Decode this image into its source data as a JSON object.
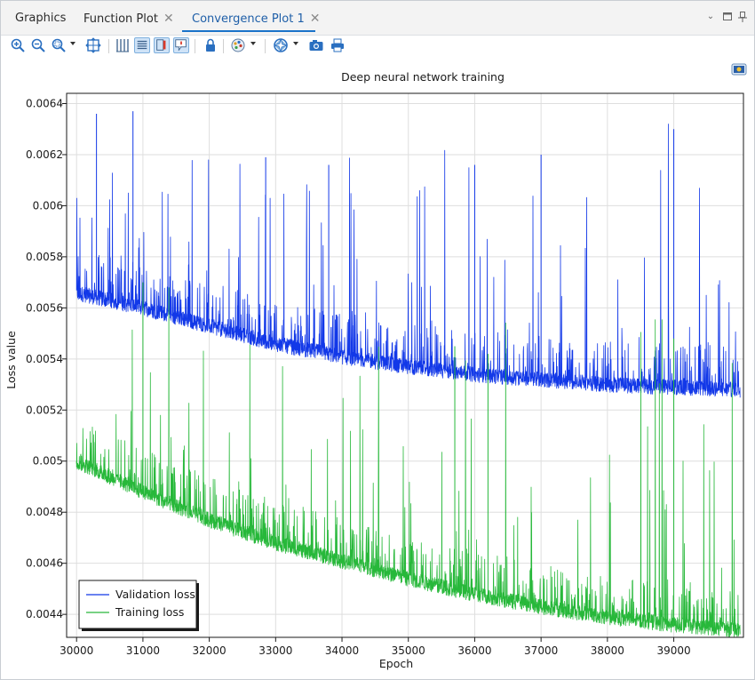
{
  "tabs": [
    {
      "label": "Graphics",
      "closable": false,
      "active": false
    },
    {
      "label": "Function Plot",
      "closable": true,
      "active": false
    },
    {
      "label": "Convergence Plot 1",
      "closable": true,
      "active": true
    }
  ],
  "toolbar": {
    "icons": [
      "zoom-in-icon",
      "zoom-out-icon",
      "zoom-box-icon",
      "zoom-extents-icon",
      "grid-icon",
      "legend-icon",
      "color-table-icon",
      "annotation-icon",
      "lock-icon",
      "scene-light-icon",
      "transparency-icon",
      "camera-icon",
      "print-icon"
    ]
  },
  "chart_data": {
    "type": "line",
    "title": "Deep neural network training",
    "xlabel": "Epoch",
    "ylabel": "Loss value",
    "xlim": [
      29850,
      40050
    ],
    "ylim": [
      0.00431,
      0.00644
    ],
    "xticks": [
      30000,
      31000,
      32000,
      33000,
      34000,
      35000,
      36000,
      37000,
      38000,
      39000
    ],
    "xtick_labels": [
      "30000",
      "31000",
      "32000",
      "33000",
      "34000",
      "35000",
      "36000",
      "37000",
      "38000",
      "39000"
    ],
    "yticks": [
      0.0044,
      0.0046,
      0.0048,
      0.005,
      0.0052,
      0.0054,
      0.0056,
      0.0058,
      0.006,
      0.0062,
      0.0064
    ],
    "ytick_labels": [
      "0.0044",
      "0.0046",
      "0.0048",
      "0.005",
      "0.0052",
      "0.0054",
      "0.0056",
      "0.0058",
      "0.006",
      "0.0062",
      "0.0064"
    ],
    "grid": true,
    "legend_position": "bottom-left",
    "series": [
      {
        "name": "Validation loss",
        "color": "#1238e8",
        "baseline_x": [
          30000,
          31000,
          32000,
          33000,
          34000,
          35000,
          36000,
          37000,
          38000,
          39000,
          40000
        ],
        "baseline_y": [
          0.00565,
          0.00559,
          0.00552,
          0.00545,
          0.0054,
          0.00536,
          0.00533,
          0.00531,
          0.00529,
          0.00528,
          0.00527
        ],
        "spike_ceiling": 0.00637,
        "points": [
          [
            30000,
            0.00565
          ],
          [
            30300,
            0.00636
          ],
          [
            30850,
            0.00637
          ],
          [
            32850,
            0.00619
          ],
          [
            33800,
            0.00616
          ],
          [
            36000,
            0.00616
          ],
          [
            37000,
            0.0062
          ],
          [
            39000,
            0.0063
          ],
          [
            40000,
            0.00527
          ]
        ]
      },
      {
        "name": "Training loss",
        "color": "#27b83a",
        "baseline_x": [
          30000,
          31000,
          32000,
          33000,
          34000,
          35000,
          36000,
          37000,
          38000,
          39000,
          40000
        ],
        "baseline_y": [
          0.00499,
          0.00487,
          0.00476,
          0.00467,
          0.0046,
          0.00453,
          0.00447,
          0.00442,
          0.00438,
          0.00435,
          0.00433
        ],
        "spike_ceiling": 0.0057,
        "points": [
          [
            30000,
            0.005
          ],
          [
            31000,
            0.0057
          ],
          [
            35700,
            0.00545
          ],
          [
            36200,
            0.00542
          ],
          [
            39000,
            0.00548
          ],
          [
            40000,
            0.00433
          ]
        ]
      }
    ]
  }
}
